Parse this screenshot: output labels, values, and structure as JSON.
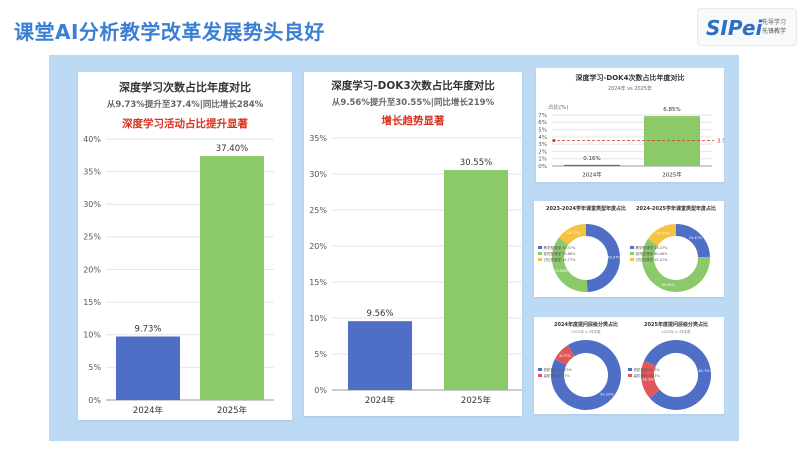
{
  "page_title": "课堂AI分析教学改革发展势头良好",
  "logo": {
    "brand": "SIPei",
    "line1": "先导学习",
    "line2": "先锋教学"
  },
  "colors": {
    "title": "#3a7fd4",
    "bar2024": "#4f6fc7",
    "bar2025": "#8cc96a",
    "highlight": "#d9321f",
    "panel": "#bcdaf3",
    "yellow": "#f5c242",
    "red": "#e15759"
  },
  "chart_data": [
    {
      "id": "deep-learning",
      "type": "bar",
      "title": "深度学习次数占比年度对比",
      "subtitle": "从9.73%提升至37.4%|同比增长284%",
      "highlight": "深度学习活动占比提升显著",
      "categories": [
        "2024年",
        "2025年"
      ],
      "values": [
        9.73,
        37.4
      ],
      "value_labels": [
        "9.73%",
        "37.40%"
      ],
      "ylim": [
        0,
        40
      ],
      "yticks": [
        0,
        5,
        10,
        15,
        20,
        25,
        30,
        35,
        40
      ],
      "ytick_labels": [
        "0%",
        "5%",
        "10%",
        "15%",
        "20%",
        "25%",
        "30%",
        "35%",
        "40%"
      ],
      "grid": true
    },
    {
      "id": "dok3",
      "type": "bar",
      "title": "深度学习-DOK3次数占比年度对比",
      "subtitle": "从9.56%提升至30.55%|同比增长219%",
      "highlight": "增长趋势显著",
      "categories": [
        "2024年",
        "2025年"
      ],
      "values": [
        9.56,
        30.55
      ],
      "value_labels": [
        "9.56%",
        "30.55%"
      ],
      "ylim": [
        0,
        35
      ],
      "yticks": [
        0,
        5,
        10,
        15,
        20,
        25,
        30,
        35
      ],
      "ytick_labels": [
        "0%",
        "5%",
        "10%",
        "15%",
        "20%",
        "25%",
        "30%",
        "35%"
      ],
      "grid": true
    },
    {
      "id": "dok4",
      "type": "bar",
      "title": "深度学习-DOK4次数占比年度对比",
      "subtitle": "2024年 vs 2025年",
      "ylabel": "占比(%)",
      "categories": [
        "2024年",
        "2025年"
      ],
      "values": [
        0.16,
        6.85
      ],
      "value_labels": [
        "0.16%",
        "6.85%"
      ],
      "ylim": [
        0,
        7
      ],
      "yticks": [
        0,
        1,
        2,
        3,
        4,
        5,
        6,
        7
      ],
      "ytick_labels": [
        "0%",
        "1%",
        "2%",
        "3%",
        "4%",
        "5%",
        "6%",
        "7%"
      ],
      "reference_line": 3.5,
      "reference_label": "3.5",
      "grid": true
    },
    {
      "id": "donut-2024-type",
      "type": "pie",
      "title": "2023-2024学年课堂类型年度占比",
      "hole": true,
      "values": [
        49.37,
        35.86,
        14.77
      ],
      "value_labels": [
        "49.37%",
        "35.86%",
        "14.77%"
      ],
      "colors": [
        "#4f6fc7",
        "#8cc96a",
        "#f5c242"
      ],
      "legend": [
        "教学型课堂",
        "探究型课堂",
        "讨论型课堂"
      ]
    },
    {
      "id": "donut-2025-type",
      "type": "pie",
      "title": "2024-2025学年课堂类型年度占比",
      "hole": true,
      "values": [
        24.47,
        60.06,
        15.47
      ],
      "value_labels": [
        "24.47%",
        "60.06%",
        "15.47%"
      ],
      "colors": [
        "#4f6fc7",
        "#8cc96a",
        "#f5c242"
      ],
      "legend": [
        "教学型课堂",
        "探究型课堂",
        "讨论型课堂"
      ]
    },
    {
      "id": "donut-2024-question",
      "type": "pie",
      "title": "2024年度提问层级分类占比",
      "subtitle": "2024年 n=样本数",
      "hole": true,
      "values": [
        91.23,
        8.77
      ],
      "value_labels": [
        "91.23%",
        "8.77%"
      ],
      "colors": [
        "#4f6fc7",
        "#e15759"
      ],
      "legend": [
        "低阶提问",
        "高阶提问"
      ]
    },
    {
      "id": "donut-2025-question",
      "type": "pie",
      "title": "2025年度提问层级分类占比",
      "subtitle": "2025年 n=样本数",
      "hole": true,
      "values": [
        81.7,
        18.3
      ],
      "value_labels": [
        "81.7%",
        "18.3%"
      ],
      "colors": [
        "#4f6fc7",
        "#e15759"
      ],
      "legend": [
        "低阶提问",
        "高阶提问"
      ]
    }
  ]
}
